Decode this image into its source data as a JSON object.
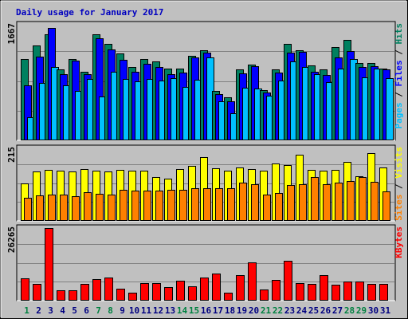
{
  "title": "Daily usage for January 2017",
  "colors": {
    "background": "#c0c0c0",
    "title": "#0000c0",
    "hits": "#008060",
    "files": "#0000ff",
    "pages": "#00c0ff",
    "visits": "#ffff00",
    "sites": "#ff8000",
    "kbytes": "#ff0000",
    "weekend_day_label": "#008040",
    "weekday_label": "#000080"
  },
  "chart_data": {
    "type": "bar",
    "title": "Daily usage for January 2017",
    "categories": [
      "1",
      "2",
      "3",
      "4",
      "5",
      "6",
      "7",
      "8",
      "9",
      "10",
      "11",
      "12",
      "13",
      "14",
      "15",
      "16",
      "17",
      "18",
      "19",
      "20",
      "21",
      "22",
      "23",
      "24",
      "25",
      "26",
      "27",
      "28",
      "29",
      "30",
      "31"
    ],
    "weekend_days": [
      "1",
      "7",
      "8",
      "14",
      "15",
      "21",
      "22",
      "28",
      "29"
    ],
    "panels": [
      {
        "max_label": "1667",
        "ylim": [
          0,
          1667
        ],
        "legend": [
          "Pages",
          "Files",
          "Hits"
        ],
        "series": [
          {
            "name": "Hits",
            "values": [
              1175,
              1371,
              1526,
              1021,
              1178,
              993,
              1526,
              1395,
              1256,
              1054,
              1178,
              1136,
              1038,
              1029,
              1217,
              1301,
              711,
              623,
              1028,
              1094,
              719,
              1026,
              1395,
              1302,
              1085,
              1021,
              1341,
              1444,
              1116,
              1113,
              1034
            ]
          },
          {
            "name": "Files",
            "values": [
              793,
              1210,
              1621,
              956,
              1154,
              957,
              1468,
              1309,
              1159,
              994,
              1103,
              1063,
              955,
              977,
              1201,
              1262,
              662,
              567,
              962,
              1074,
              690,
              979,
              1266,
              1278,
              992,
              946,
              1201,
              1293,
              1054,
              1069,
              1018
            ]
          },
          {
            "name": "Pages",
            "values": [
              338,
              826,
              1055,
              799,
              709,
              887,
              634,
              987,
              889,
              854,
              881,
              858,
              894,
              774,
              876,
              1194,
              561,
              395,
              763,
              744,
              648,
              857,
              1134,
              1053,
              959,
              841,
              1036,
              1173,
              907,
              1029,
              902
            ]
          }
        ]
      },
      {
        "max_label": "215",
        "ylim": [
          0,
          215
        ],
        "legend": [
          "Sites",
          "Visits"
        ],
        "series": [
          {
            "name": "Visits",
            "values": [
              110,
              147,
              151,
              148,
              147,
              154,
              149,
              147,
              151,
              149,
              148,
              129,
              126,
              153,
              162,
              190,
              157,
              148,
              158,
              153,
              150,
              169,
              166,
              196,
              151,
              149,
              152,
              176,
              132,
              200,
              158
            ]
          },
          {
            "name": "Sites",
            "values": [
              69,
              75,
              79,
              78,
              73,
              84,
              81,
              78,
              91,
              89,
              89,
              90,
              92,
              91,
              97,
              97,
              98,
              97,
              114,
              108,
              78,
              82,
              106,
              109,
              130,
              108,
              113,
              118,
              130,
              116,
              87
            ]
          }
        ]
      },
      {
        "max_label": "26265",
        "ylim": [
          0,
          26265
        ],
        "legend": [
          "KBytes"
        ],
        "series": [
          {
            "name": "KBytes",
            "values": [
              8200,
              6100,
              26265,
              3700,
              3800,
              6000,
              7800,
              8400,
              4300,
              2900,
              6300,
              6400,
              4800,
              7200,
              5300,
              8400,
              9700,
              2800,
              9100,
              13800,
              4000,
              7400,
              14400,
              6300,
              6000,
              9200,
              5800,
              7000,
              7000,
              6000,
              6200
            ]
          }
        ]
      }
    ]
  }
}
